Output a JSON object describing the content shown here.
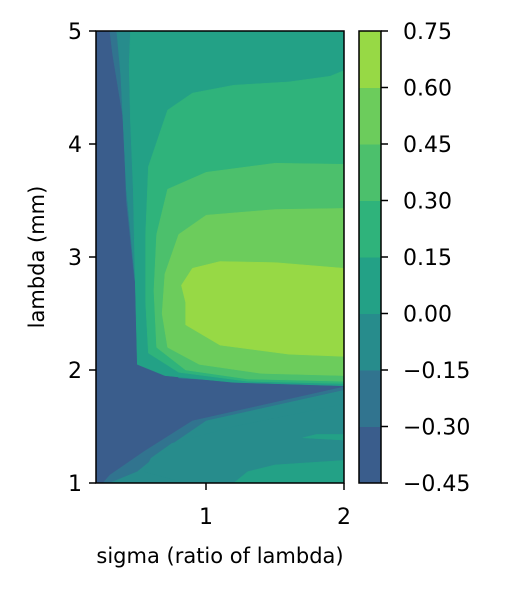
{
  "chart_data": {
    "type": "contourf",
    "title": "",
    "xlabel": "sigma (ratio of lambda)",
    "ylabel": "lambda (mm)",
    "xlim": [
      0.2,
      2.0
    ],
    "ylim": [
      1,
      5
    ],
    "x_ticks": [
      "1",
      "2"
    ],
    "y_ticks": [
      "1",
      "2",
      "3",
      "4",
      "5"
    ],
    "grid": false,
    "colorbar": {
      "ticks": [
        "0.75",
        "0.60",
        "0.45",
        "0.30",
        "0.15",
        "0.00",
        "−0.15",
        "−0.30",
        "−0.45"
      ],
      "levels": [
        -0.45,
        -0.3,
        -0.15,
        0.0,
        0.15,
        0.3,
        0.45,
        0.6,
        0.75
      ],
      "colors": [
        "#3a5d8c",
        "#31748f",
        "#278c8c",
        "#23a186",
        "#2fb37b",
        "#4cc06c",
        "#6ccc5c",
        "#97d945"
      ]
    },
    "regions": [
      {
        "level": -0.375,
        "points": [
          [
            0.2,
            1
          ],
          [
            2.0,
            1
          ],
          [
            2.0,
            5
          ],
          [
            0.2,
            5
          ]
        ]
      },
      {
        "level": -0.225,
        "points": [
          [
            0.25,
            1
          ],
          [
            2.0,
            1
          ],
          [
            2.0,
            1.9
          ],
          [
            1.6,
            1.93
          ],
          [
            1.0,
            1.98
          ],
          [
            0.65,
            2.2
          ],
          [
            0.48,
            2.8
          ],
          [
            0.42,
            3.5
          ],
          [
            0.4,
            4.2
          ],
          [
            0.32,
            4.8
          ],
          [
            0.3,
            5
          ],
          [
            2.0,
            5
          ],
          [
            2.0,
            1.85
          ],
          [
            0.9,
            1.55
          ],
          [
            0.55,
            1.28
          ],
          [
            0.3,
            1.07
          ]
        ]
      },
      {
        "level": -0.075,
        "points": [
          [
            0.3,
            1
          ],
          [
            2.0,
            1
          ],
          [
            2.0,
            1.87
          ],
          [
            1.2,
            1.9
          ],
          [
            0.8,
            1.93
          ],
          [
            0.62,
            2.2
          ],
          [
            0.5,
            2.6
          ],
          [
            0.46,
            3.1
          ],
          [
            0.42,
            3.6
          ],
          [
            0.4,
            4.1
          ],
          [
            0.38,
            4.6
          ],
          [
            0.35,
            5
          ],
          [
            2.0,
            5
          ],
          [
            2.0,
            1.82
          ],
          [
            1.0,
            1.55
          ],
          [
            0.7,
            1.3
          ],
          [
            0.5,
            1.1
          ]
        ]
      },
      {
        "level": -0.075,
        "points": [
          [
            0.85,
            1.0
          ],
          [
            2.0,
            1.0
          ],
          [
            2.0,
            1.7
          ],
          [
            1.6,
            1.6
          ],
          [
            1.2,
            1.5
          ],
          [
            0.75,
            1.35
          ],
          [
            0.6,
            1.22
          ],
          [
            0.55,
            1.1
          ]
        ]
      },
      {
        "level": 0.075,
        "points": [
          [
            1.2,
            1.0
          ],
          [
            2.0,
            1.0
          ],
          [
            2.0,
            1.43
          ],
          [
            1.8,
            1.43
          ],
          [
            1.7,
            1.4
          ],
          [
            2.0,
            1.38
          ],
          [
            2.0,
            1.2
          ],
          [
            1.5,
            1.16
          ],
          [
            1.3,
            1.1
          ]
        ]
      },
      {
        "level": 0.075,
        "points": [
          [
            0.5,
            2.05
          ],
          [
            0.7,
            1.95
          ],
          [
            1.2,
            1.89
          ],
          [
            2.0,
            1.86
          ],
          [
            2.0,
            5
          ],
          [
            0.45,
            5
          ],
          [
            0.44,
            4.7
          ],
          [
            0.45,
            4.2
          ],
          [
            0.47,
            3.6
          ],
          [
            0.48,
            3.0
          ],
          [
            0.49,
            2.5
          ]
        ]
      },
      {
        "level": 0.225,
        "points": [
          [
            0.58,
            2.15
          ],
          [
            0.8,
            1.98
          ],
          [
            1.3,
            1.9
          ],
          [
            2.0,
            1.88
          ],
          [
            2.0,
            4.65
          ],
          [
            1.9,
            4.6
          ],
          [
            1.6,
            4.55
          ],
          [
            1.2,
            4.52
          ],
          [
            0.9,
            4.45
          ],
          [
            0.72,
            4.3
          ],
          [
            0.58,
            3.8
          ],
          [
            0.56,
            3.2
          ],
          [
            0.56,
            2.6
          ]
        ]
      },
      {
        "level": 0.375,
        "points": [
          [
            0.64,
            2.2
          ],
          [
            0.85,
            2.0
          ],
          [
            1.3,
            1.92
          ],
          [
            2.0,
            1.9
          ],
          [
            2.0,
            3.82
          ],
          [
            1.5,
            3.83
          ],
          [
            1.0,
            3.75
          ],
          [
            0.72,
            3.6
          ],
          [
            0.64,
            3.2
          ],
          [
            0.62,
            2.7
          ]
        ]
      },
      {
        "level": 0.525,
        "points": [
          [
            0.72,
            2.2
          ],
          [
            0.95,
            2.05
          ],
          [
            1.4,
            1.97
          ],
          [
            2.0,
            1.95
          ],
          [
            2.0,
            3.43
          ],
          [
            1.5,
            3.42
          ],
          [
            1.0,
            3.37
          ],
          [
            0.8,
            3.2
          ],
          [
            0.7,
            2.85
          ],
          [
            0.68,
            2.5
          ]
        ]
      },
      {
        "level": 0.675,
        "points": [
          [
            0.85,
            2.4
          ],
          [
            1.1,
            2.22
          ],
          [
            1.6,
            2.14
          ],
          [
            2.0,
            2.12
          ],
          [
            2.0,
            2.9
          ],
          [
            1.5,
            2.95
          ],
          [
            1.1,
            2.96
          ],
          [
            0.9,
            2.9
          ],
          [
            0.82,
            2.75
          ],
          [
            0.85,
            2.6
          ]
        ]
      }
    ]
  }
}
